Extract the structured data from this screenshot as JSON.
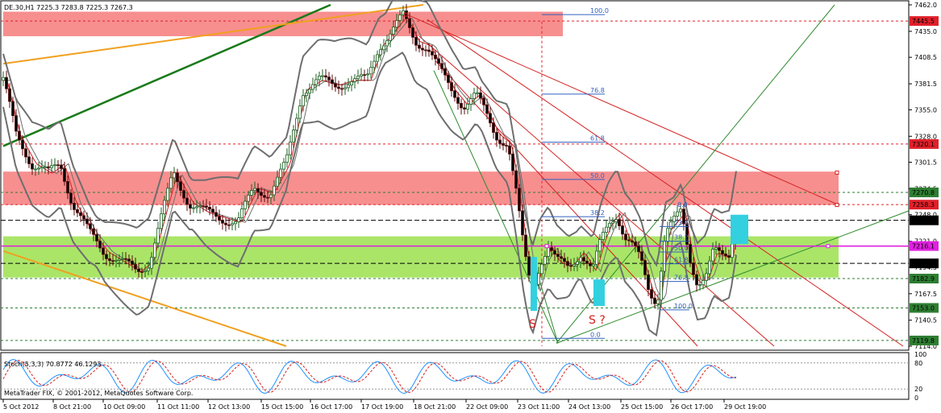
{
  "chart_title": "DE.30,H1  7225.3 7283.8 7225.3 7267.3",
  "copyright": "MetaTrader FIX, © 2001-2012, MetaQuotes Software Corp.",
  "chart_data": [
    {
      "type": "candlestick",
      "symbol": "DE.30",
      "timeframe": "H1",
      "ohlc_last": {
        "open": 7225.3,
        "high": 7283.8,
        "low": 7225.3,
        "close": 7267.3
      },
      "ylim": [
        7114.0,
        7462.0
      ],
      "y_ticks": [
        "7462.0",
        "7435.0",
        "7408.5",
        "7381.5",
        "7355.0",
        "7328.0",
        "7301.5",
        "7274.5",
        "7248.0",
        "7221.0",
        "7194.5",
        "7167.5",
        "7140.5",
        "7114.0"
      ],
      "x_ticks": [
        "5 Oct 2012",
        "8 Oct 21:00",
        "10 Oct 09:00",
        "11 Oct 11:00",
        "12 Oct 13:00",
        "15 Oct 15:00",
        "16 Oct 17:00",
        "17 Oct 19:00",
        "18 Oct 21:00",
        "22 Oct 09:00",
        "23 Oct 11:00",
        "24 Oct 13:00",
        "25 Oct 15:00",
        "26 Oct 17:00",
        "29 Oct 19:00"
      ],
      "price_markers": [
        {
          "value": "7445.5",
          "color": "#e0202a"
        },
        {
          "value": "7320.1",
          "color": "#e0202a"
        },
        {
          "value": "7270.8",
          "color": "#2e7d32"
        },
        {
          "value": "7258.3",
          "color": "#e0202a"
        },
        {
          "value": "7242.3",
          "color": "#000000"
        },
        {
          "value": "7216.1",
          "color": "#e020e0"
        },
        {
          "value": "7198.4",
          "color": "#000000"
        },
        {
          "value": "7182.9",
          "color": "#2e7d32"
        },
        {
          "value": "7153.0",
          "color": "#2e7d32"
        },
        {
          "value": "7119.8",
          "color": "#2e7d32"
        }
      ],
      "fibo_main": [
        {
          "level": "100.0",
          "price": 7452
        },
        {
          "level": "76.8",
          "price": 7371
        },
        {
          "level": "61.8",
          "price": 7322
        },
        {
          "level": "50.0",
          "price": 7284
        },
        {
          "level": "38.2",
          "price": 7246
        },
        {
          "level": "0.0",
          "price": 7122
        }
      ],
      "fibo_second": [
        {
          "level": "23.6",
          "price": 7236
        },
        {
          "level": "38.2",
          "price": 7221
        },
        {
          "level": "50.0",
          "price": 7210
        },
        {
          "level": "61.8",
          "price": 7198
        },
        {
          "level": "76.8",
          "price": 7180
        },
        {
          "level": "100.0",
          "price": 7151
        }
      ],
      "fibo_top_label": "0.0",
      "annotations": [
        "S",
        "S ?"
      ],
      "zones": [
        {
          "name": "resistance-top",
          "from": 7430,
          "to": 7455,
          "color": "#f46a6a"
        },
        {
          "name": "resistance-mid",
          "from": 7258,
          "to": 7292,
          "color": "#f46a6a"
        },
        {
          "name": "support",
          "from": 7184,
          "to": 7226,
          "color": "#9be04e"
        }
      ],
      "grid": false
    },
    {
      "type": "line",
      "name": "Stoch(5,3,3)",
      "header": "Stoch(5,3,3) 70.8772 46.1293",
      "ylim": [
        0,
        100
      ],
      "y_ticks": [
        "100",
        "80",
        "20",
        "0"
      ]
    }
  ],
  "colors": {
    "bull": "#2e7d32",
    "bear": "#8b1a1a",
    "bands": "#6e6e6e",
    "ma": "#d42020",
    "stoch_main": "#1e90ff",
    "stoch_signal": "#d42020",
    "fibo": "#3060c0",
    "highlight": "#33d0e0"
  }
}
